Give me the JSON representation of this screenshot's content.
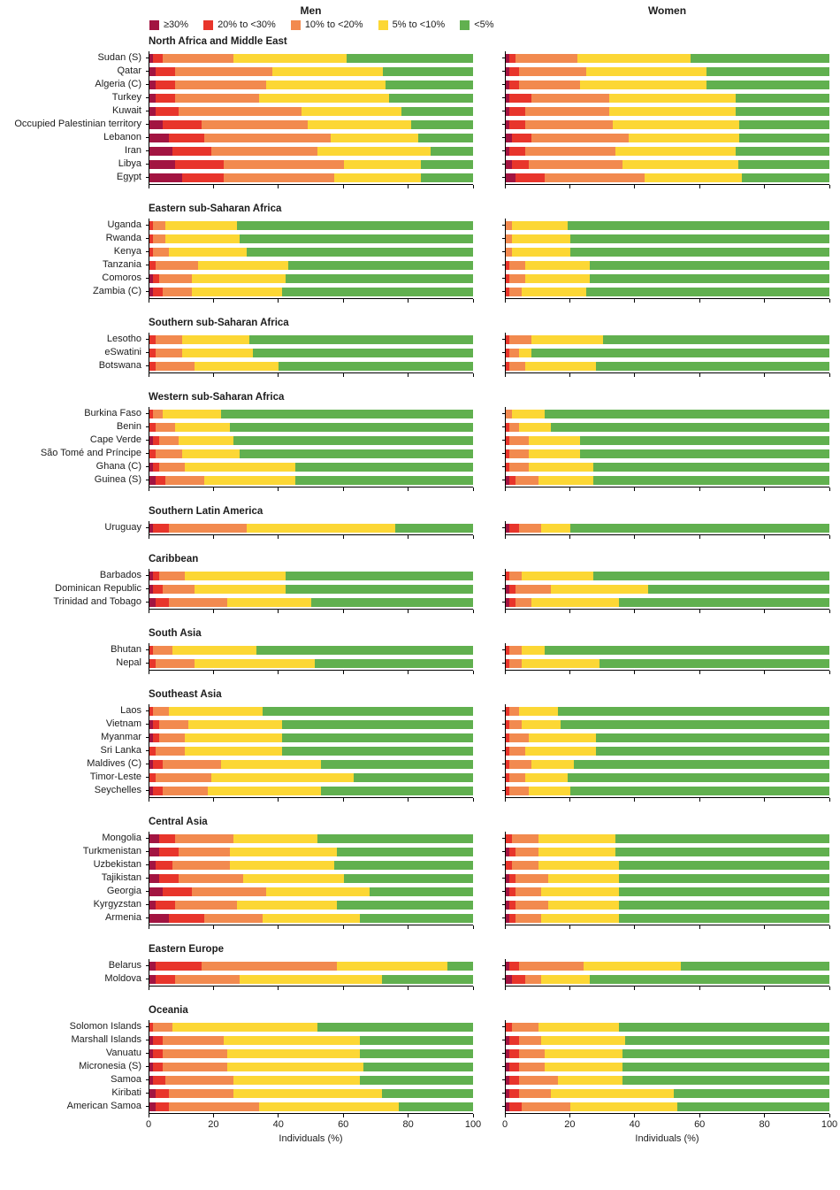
{
  "chart_data": {
    "type": "bar",
    "subtype": "stacked_horizontal_100pct",
    "legend_position": "top",
    "grid": false,
    "title_men": "Men",
    "title_women": "Women",
    "xlabel": "Individuals (%)",
    "xlim": [
      0,
      100
    ],
    "xticks": [
      0,
      20,
      40,
      60,
      80,
      100
    ],
    "legend": [
      {
        "label": "≥30%",
        "color": "#a21441"
      },
      {
        "label": "20% to <30%",
        "color": "#e8352b"
      },
      {
        "label": "10% to <20%",
        "color": "#f28a4f"
      },
      {
        "label": "5% to <10%",
        "color": "#fcd735"
      },
      {
        "label": "<5%",
        "color": "#61b04f"
      }
    ],
    "series_note": "Each country row: percentages of individuals in prevalence categories [≥30%, 20% to <30%, 10% to <20%, 5% to <10%, <5%], for men and women",
    "regions": [
      {
        "name": "North Africa and Middle East",
        "countries": [
          {
            "name": "Sudan (S)",
            "men": [
              1,
              3,
              22,
              35,
              39
            ],
            "women": [
              1,
              2,
              19,
              35,
              43
            ]
          },
          {
            "name": "Qatar",
            "men": [
              2,
              6,
              30,
              34,
              28
            ],
            "women": [
              1,
              3,
              21,
              37,
              38
            ]
          },
          {
            "name": "Algeria (C)",
            "men": [
              2,
              6,
              28,
              37,
              27
            ],
            "women": [
              1,
              3,
              19,
              39,
              38
            ]
          },
          {
            "name": "Turkey",
            "men": [
              2,
              6,
              26,
              40,
              26
            ],
            "women": [
              1,
              7,
              24,
              39,
              29
            ]
          },
          {
            "name": "Kuwait",
            "men": [
              2,
              7,
              38,
              31,
              22
            ],
            "women": [
              1,
              5,
              26,
              39,
              29
            ]
          },
          {
            "name": "Occupied Palestinian territory",
            "men": [
              4,
              12,
              33,
              32,
              19
            ],
            "women": [
              1,
              5,
              27,
              39,
              28
            ]
          },
          {
            "name": "Lebanon",
            "men": [
              6,
              11,
              39,
              27,
              17
            ],
            "women": [
              2,
              6,
              30,
              34,
              28
            ]
          },
          {
            "name": "Iran",
            "men": [
              7,
              12,
              33,
              35,
              13
            ],
            "women": [
              1,
              5,
              28,
              37,
              29
            ]
          },
          {
            "name": "Libya",
            "men": [
              8,
              15,
              37,
              24,
              16
            ],
            "women": [
              2,
              5,
              29,
              36,
              28
            ]
          },
          {
            "name": "Egypt",
            "men": [
              10,
              13,
              34,
              27,
              16
            ],
            "women": [
              3,
              9,
              31,
              30,
              27
            ]
          }
        ]
      },
      {
        "name": "Eastern sub-Saharan Africa",
        "countries": [
          {
            "name": "Uganda",
            "men": [
              0,
              1,
              4,
              22,
              73
            ],
            "women": [
              0,
              0,
              2,
              17,
              81
            ]
          },
          {
            "name": "Rwanda",
            "men": [
              0,
              1,
              4,
              23,
              72
            ],
            "women": [
              0,
              0,
              2,
              18,
              80
            ]
          },
          {
            "name": "Kenya",
            "men": [
              0,
              1,
              5,
              24,
              70
            ],
            "women": [
              0,
              0,
              2,
              18,
              80
            ]
          },
          {
            "name": "Tanzania",
            "men": [
              0,
              2,
              13,
              28,
              57
            ],
            "women": [
              0,
              1,
              5,
              20,
              74
            ]
          },
          {
            "name": "Comoros",
            "men": [
              1,
              2,
              10,
              29,
              58
            ],
            "women": [
              0,
              1,
              5,
              20,
              74
            ]
          },
          {
            "name": "Zambia (C)",
            "men": [
              1,
              3,
              9,
              28,
              59
            ],
            "women": [
              0,
              1,
              4,
              20,
              75
            ]
          }
        ]
      },
      {
        "name": "Southern sub-Saharan Africa",
        "countries": [
          {
            "name": "Lesotho",
            "men": [
              0,
              2,
              8,
              21,
              69
            ],
            "women": [
              0,
              1,
              7,
              22,
              70
            ]
          },
          {
            "name": "eSwatini",
            "men": [
              0,
              2,
              8,
              22,
              68
            ],
            "women": [
              0,
              1,
              3,
              4,
              92
            ]
          },
          {
            "name": "Botswana",
            "men": [
              0,
              2,
              12,
              26,
              60
            ],
            "women": [
              0,
              1,
              5,
              22,
              72
            ]
          }
        ]
      },
      {
        "name": "Western sub-Saharan Africa",
        "countries": [
          {
            "name": "Burkina Faso",
            "men": [
              0,
              1,
              3,
              18,
              78
            ],
            "women": [
              0,
              0,
              2,
              10,
              88
            ]
          },
          {
            "name": "Benin",
            "men": [
              0,
              2,
              6,
              17,
              75
            ],
            "women": [
              0,
              1,
              3,
              10,
              86
            ]
          },
          {
            "name": "Cape Verde",
            "men": [
              1,
              2,
              6,
              17,
              74
            ],
            "women": [
              0,
              1,
              6,
              16,
              77
            ]
          },
          {
            "name": "São Tomé and Príncipe",
            "men": [
              0,
              2,
              8,
              18,
              72
            ],
            "women": [
              0,
              1,
              6,
              16,
              77
            ]
          },
          {
            "name": "Ghana (C)",
            "men": [
              1,
              2,
              8,
              34,
              55
            ],
            "women": [
              0,
              1,
              6,
              20,
              73
            ]
          },
          {
            "name": "Guinea (S)",
            "men": [
              2,
              3,
              12,
              28,
              55
            ],
            "women": [
              1,
              2,
              7,
              17,
              73
            ]
          }
        ]
      },
      {
        "name": "Southern Latin America",
        "countries": [
          {
            "name": "Uruguay",
            "men": [
              1,
              5,
              24,
              46,
              24
            ],
            "women": [
              1,
              3,
              7,
              9,
              80
            ]
          }
        ]
      },
      {
        "name": "Caribbean",
        "countries": [
          {
            "name": "Barbados",
            "men": [
              1,
              2,
              8,
              31,
              58
            ],
            "women": [
              0,
              1,
              4,
              22,
              73
            ]
          },
          {
            "name": "Dominican Republic",
            "men": [
              1,
              3,
              10,
              28,
              58
            ],
            "women": [
              1,
              2,
              11,
              30,
              56
            ]
          },
          {
            "name": "Trinidad and Tobago",
            "men": [
              2,
              4,
              18,
              26,
              50
            ],
            "women": [
              1,
              2,
              5,
              27,
              65
            ]
          }
        ]
      },
      {
        "name": "South Asia",
        "countries": [
          {
            "name": "Bhutan",
            "men": [
              0,
              1,
              6,
              26,
              67
            ],
            "women": [
              0,
              1,
              4,
              7,
              88
            ]
          },
          {
            "name": "Nepal",
            "men": [
              0,
              2,
              12,
              37,
              49
            ],
            "women": [
              0,
              1,
              4,
              24,
              71
            ]
          }
        ]
      },
      {
        "name": "Southeast Asia",
        "countries": [
          {
            "name": "Laos",
            "men": [
              0,
              1,
              5,
              29,
              65
            ],
            "women": [
              0,
              1,
              3,
              12,
              84
            ]
          },
          {
            "name": "Vietnam",
            "men": [
              1,
              2,
              9,
              29,
              59
            ],
            "women": [
              0,
              1,
              4,
              12,
              83
            ]
          },
          {
            "name": "Myanmar",
            "men": [
              1,
              2,
              8,
              30,
              59
            ],
            "women": [
              0,
              1,
              6,
              21,
              72
            ]
          },
          {
            "name": "Sri Lanka",
            "men": [
              0,
              2,
              9,
              30,
              59
            ],
            "women": [
              0,
              1,
              5,
              22,
              72
            ]
          },
          {
            "name": "Maldives (C)",
            "men": [
              1,
              3,
              18,
              31,
              47
            ],
            "women": [
              0,
              1,
              7,
              13,
              79
            ]
          },
          {
            "name": "Timor-Leste",
            "men": [
              0,
              2,
              17,
              44,
              37
            ],
            "women": [
              0,
              1,
              5,
              13,
              81
            ]
          },
          {
            "name": "Seychelles",
            "men": [
              1,
              3,
              14,
              35,
              47
            ],
            "women": [
              0,
              1,
              6,
              13,
              80
            ]
          }
        ]
      },
      {
        "name": "Central Asia",
        "countries": [
          {
            "name": "Mongolia",
            "men": [
              3,
              5,
              18,
              26,
              48
            ],
            "women": [
              0,
              2,
              8,
              24,
              66
            ]
          },
          {
            "name": "Turkmenistan",
            "men": [
              3,
              6,
              16,
              33,
              42
            ],
            "women": [
              1,
              2,
              7,
              24,
              66
            ]
          },
          {
            "name": "Uzbekistan",
            "men": [
              2,
              5,
              18,
              32,
              43
            ],
            "women": [
              0,
              2,
              8,
              25,
              65
            ]
          },
          {
            "name": "Tajikistan",
            "men": [
              3,
              6,
              20,
              31,
              40
            ],
            "women": [
              1,
              2,
              10,
              22,
              65
            ]
          },
          {
            "name": "Georgia",
            "men": [
              4,
              9,
              23,
              32,
              32
            ],
            "women": [
              1,
              2,
              8,
              24,
              65
            ]
          },
          {
            "name": "Kyrgyzstan",
            "men": [
              2,
              6,
              19,
              31,
              42
            ],
            "women": [
              1,
              2,
              10,
              22,
              65
            ]
          },
          {
            "name": "Armenia",
            "men": [
              6,
              11,
              18,
              30,
              35
            ],
            "women": [
              1,
              2,
              8,
              24,
              65
            ]
          }
        ]
      },
      {
        "name": "Eastern Europe",
        "countries": [
          {
            "name": "Belarus",
            "men": [
              2,
              14,
              42,
              34,
              8
            ],
            "women": [
              1,
              3,
              20,
              30,
              46
            ]
          },
          {
            "name": "Moldova",
            "men": [
              2,
              6,
              20,
              44,
              28
            ],
            "women": [
              2,
              4,
              5,
              15,
              74
            ]
          }
        ]
      },
      {
        "name": "Oceania",
        "countries": [
          {
            "name": "Solomon Islands",
            "men": [
              0,
              1,
              6,
              45,
              48
            ],
            "women": [
              0,
              2,
              8,
              25,
              65
            ]
          },
          {
            "name": "Marshall Islands",
            "men": [
              1,
              3,
              19,
              42,
              35
            ],
            "women": [
              1,
              3,
              7,
              26,
              63
            ]
          },
          {
            "name": "Vanuatu",
            "men": [
              1,
              3,
              20,
              41,
              35
            ],
            "women": [
              1,
              3,
              8,
              24,
              64
            ]
          },
          {
            "name": "Micronesia (S)",
            "men": [
              1,
              3,
              20,
              42,
              34
            ],
            "women": [
              1,
              3,
              8,
              24,
              64
            ]
          },
          {
            "name": "Samoa",
            "men": [
              1,
              4,
              21,
              39,
              35
            ],
            "women": [
              1,
              3,
              12,
              20,
              64
            ]
          },
          {
            "name": "Kiribati",
            "men": [
              2,
              4,
              20,
              46,
              28
            ],
            "women": [
              1,
              3,
              10,
              38,
              48
            ]
          },
          {
            "name": "American Samoa",
            "men": [
              2,
              4,
              28,
              43,
              23
            ],
            "women": [
              1,
              4,
              15,
              33,
              47
            ]
          }
        ]
      }
    ]
  }
}
